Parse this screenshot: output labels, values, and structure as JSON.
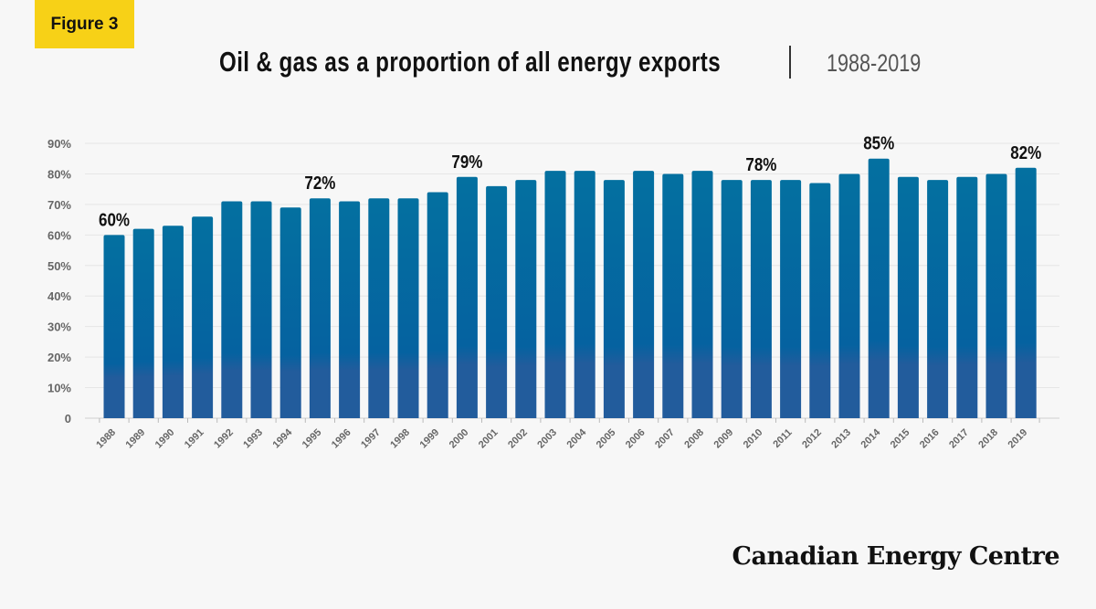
{
  "badge": "Figure 3",
  "title": "Oil & gas as a proportion of all energy exports",
  "date_range": "1988-2019",
  "brand": "Canadian Energy Centre",
  "colors": {
    "bar_top": "#0470a0",
    "bar_bottom": "#225c9c",
    "badge": "#f7d117"
  },
  "chart_data": {
    "type": "bar",
    "title": "Oil & gas as a proportion of all energy exports",
    "xlabel": "",
    "ylabel": "",
    "ylim": [
      0,
      90
    ],
    "yticks": [
      "0",
      "10%",
      "20%",
      "30%",
      "40%",
      "50%",
      "60%",
      "70%",
      "80%",
      "90%"
    ],
    "grid": true,
    "categories": [
      "1988",
      "1989",
      "1990",
      "1991",
      "1992",
      "1993",
      "1994",
      "1995",
      "1996",
      "1997",
      "1998",
      "1999",
      "2000",
      "2001",
      "2002",
      "2003",
      "2004",
      "2005",
      "2006",
      "2007",
      "2008",
      "2009",
      "2010",
      "2011",
      "2012",
      "2013",
      "2014",
      "2015",
      "2016",
      "2017",
      "2018",
      "2019"
    ],
    "values": [
      60,
      62,
      63,
      66,
      71,
      71,
      69,
      72,
      71,
      72,
      72,
      74,
      79,
      76,
      78,
      81,
      81,
      78,
      81,
      80,
      81,
      78,
      78,
      78,
      77,
      80,
      85,
      79,
      78,
      79,
      80,
      82
    ],
    "data_labels": [
      {
        "category": "1988",
        "text": "60%"
      },
      {
        "category": "1995",
        "text": "72%"
      },
      {
        "category": "2000",
        "text": "79%"
      },
      {
        "category": "2010",
        "text": "78%"
      },
      {
        "category": "2014",
        "text": "85%"
      },
      {
        "category": "2019",
        "text": "82%"
      }
    ]
  }
}
